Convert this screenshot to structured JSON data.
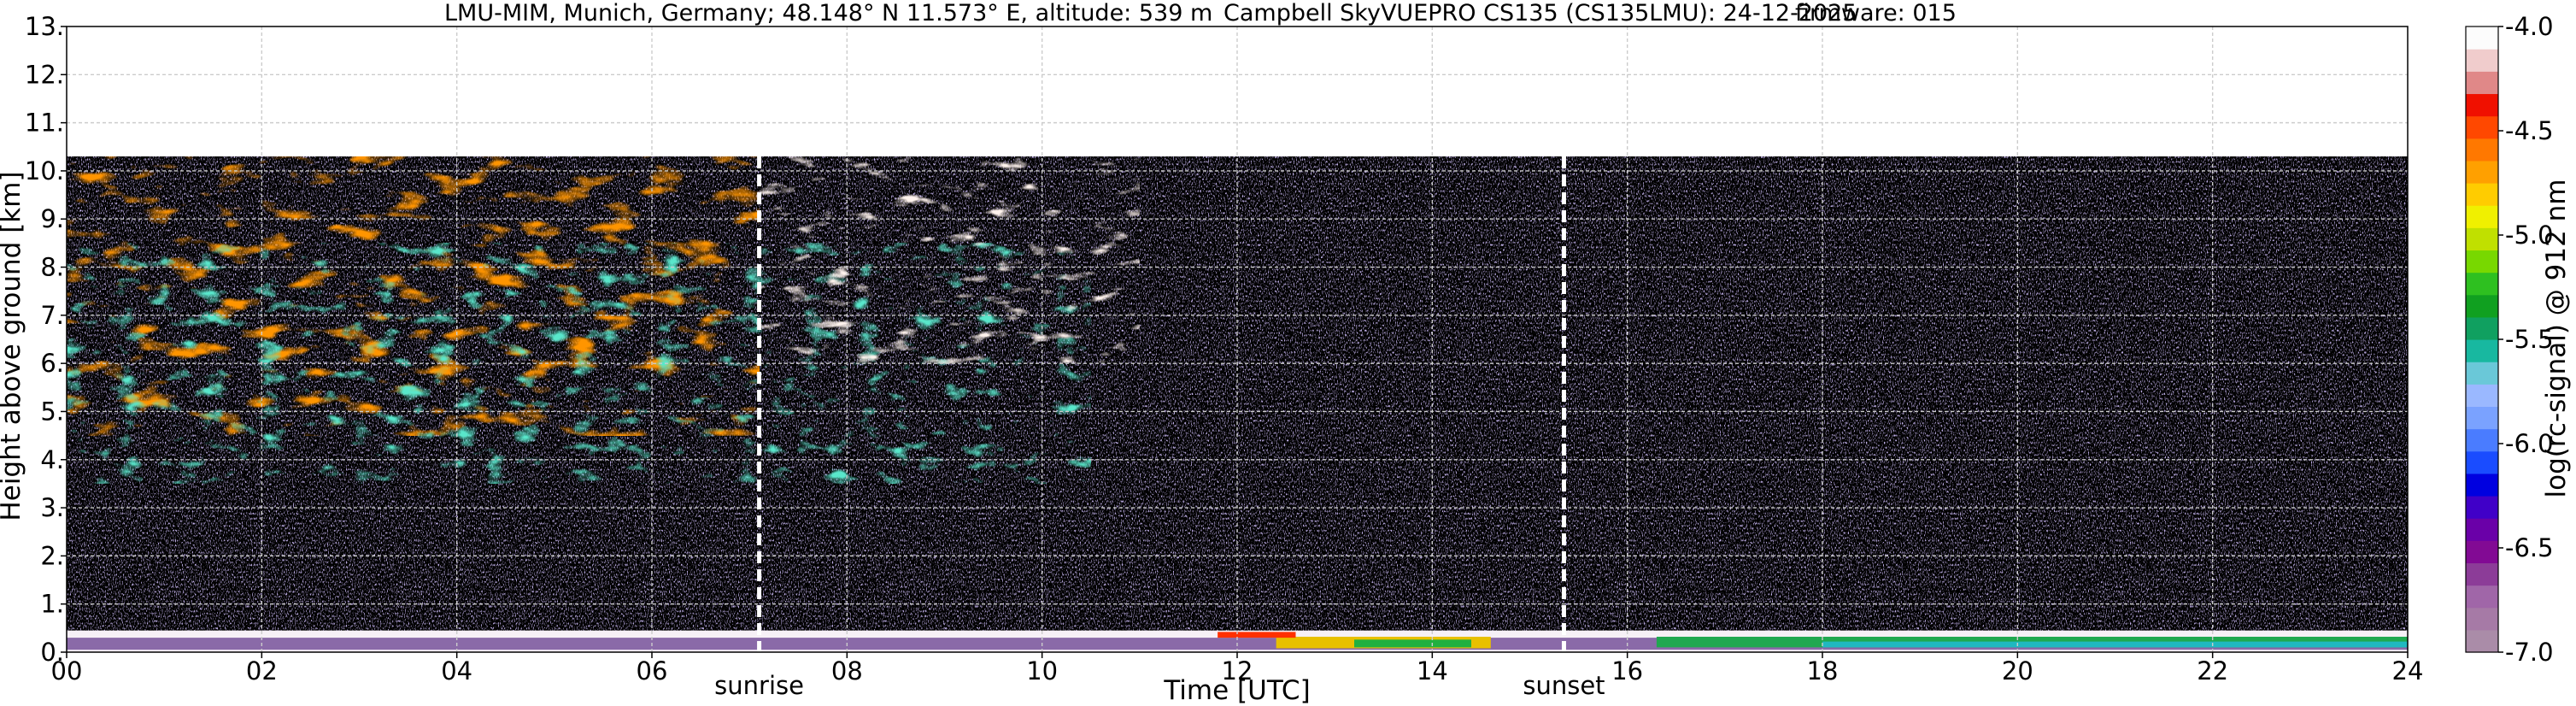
{
  "chart_data": {
    "type": "heatmap",
    "title_left": "LMU-MIM, Munich, Germany; 48.148° N 11.573° E, altitude: 539 m",
    "title_center": "Campbell SkyVUEPRO CS135 (CS135LMU): 24-12-2025",
    "title_right": "firmware: 015",
    "xlabel": "Time [UTC]",
    "ylabel": "Height above ground [km]",
    "colorbar_label": "log(rc-signal) @ 912 nm",
    "xlim": [
      0,
      24
    ],
    "ylim": [
      0,
      13
    ],
    "x_ticks": [
      {
        "value": 0,
        "label": "00"
      },
      {
        "value": 2,
        "label": "02"
      },
      {
        "value": 4,
        "label": "04"
      },
      {
        "value": 6,
        "label": "06"
      },
      {
        "value": 8,
        "label": "08"
      },
      {
        "value": 10,
        "label": "10"
      },
      {
        "value": 12,
        "label": "12"
      },
      {
        "value": 14,
        "label": "14"
      },
      {
        "value": 16,
        "label": "16"
      },
      {
        "value": 18,
        "label": "18"
      },
      {
        "value": 20,
        "label": "20"
      },
      {
        "value": 22,
        "label": "22"
      },
      {
        "value": 24,
        "label": "24"
      }
    ],
    "y_ticks": [
      {
        "value": 0,
        "label": "0."
      },
      {
        "value": 1,
        "label": "1."
      },
      {
        "value": 2,
        "label": "2."
      },
      {
        "value": 3,
        "label": "3."
      },
      {
        "value": 4,
        "label": "4."
      },
      {
        "value": 5,
        "label": "5."
      },
      {
        "value": 6,
        "label": "6."
      },
      {
        "value": 7,
        "label": "7."
      },
      {
        "value": 8,
        "label": "8."
      },
      {
        "value": 9,
        "label": "9."
      },
      {
        "value": 10,
        "label": "10."
      },
      {
        "value": 11,
        "label": "11."
      },
      {
        "value": 12,
        "label": "12."
      },
      {
        "value": 13,
        "label": "13."
      }
    ],
    "colorbar_range": [
      -7.0,
      -4.0
    ],
    "colorbar_ticks": [
      {
        "value": -4.0,
        "label": "-4.0"
      },
      {
        "value": -4.5,
        "label": "-4.5"
      },
      {
        "value": -5.0,
        "label": "-5.0"
      },
      {
        "value": -5.5,
        "label": "-5.5"
      },
      {
        "value": -6.0,
        "label": "-6.0"
      },
      {
        "value": -6.5,
        "label": "-6.5"
      },
      {
        "value": -7.0,
        "label": "-7.0"
      }
    ],
    "colorbar_colors": [
      "#aa8ca8",
      "#a67aa6",
      "#a066a8",
      "#8c3c98",
      "#820a94",
      "#6a00a8",
      "#4000c8",
      "#0000e0",
      "#1a4cff",
      "#4a7cff",
      "#7aa2ff",
      "#9ab8ff",
      "#6ac8d8",
      "#18b8a0",
      "#10a060",
      "#10a020",
      "#2ec020",
      "#78d800",
      "#c0e000",
      "#f0f000",
      "#ffcc00",
      "#ffa000",
      "#ff7800",
      "#ff4800",
      "#f01000",
      "#e08888",
      "#f0cccc",
      "#fcfcfc"
    ],
    "data_top_km": 10.3,
    "grid": true,
    "markers": [
      {
        "name": "sunrise",
        "x": 7.1
      },
      {
        "name": "sunset",
        "x": 15.35
      }
    ]
  }
}
